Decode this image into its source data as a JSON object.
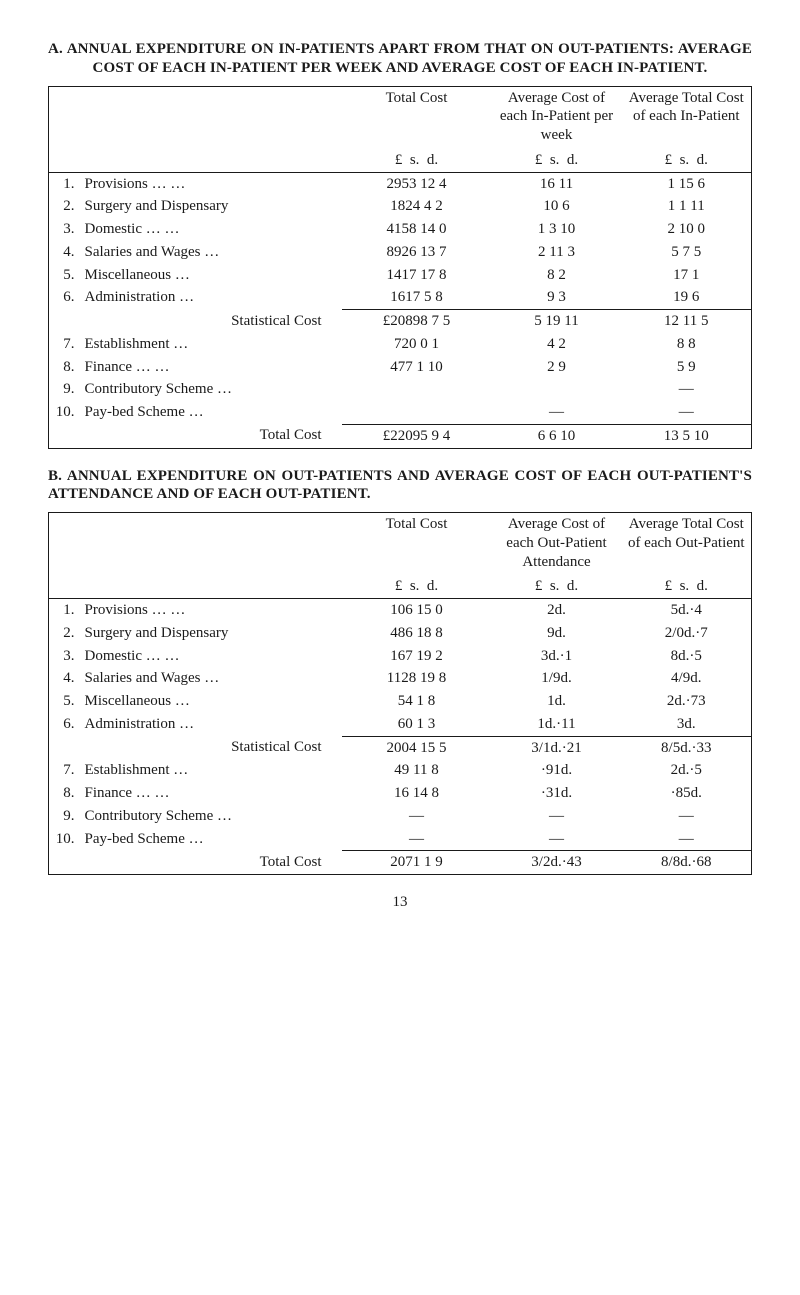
{
  "pageNumber": "13",
  "sectionA": {
    "title": "A. ANNUAL EXPENDITURE ON IN-PATIENTS APART FROM THAT ON OUT-PATIENTS: AVERAGE COST OF EACH IN-PATIENT PER WEEK AND AVERAGE COST OF EACH IN-PATIENT.",
    "headers": {
      "col1": "Total Cost",
      "col2": "Average Cost of each In-Patient per week",
      "col3": "Average Total Cost of each In-Patient"
    },
    "lsd": {
      "L": "£",
      "s": "s.",
      "d": "d."
    },
    "rows": [
      {
        "idx": "1.",
        "label": "Provisions       …       …",
        "c1": "2953 12  4",
        "c2": "16 11",
        "c3": "1 15  6"
      },
      {
        "idx": "2.",
        "label": "Surgery and Dispensary",
        "c1": "1824  4  2",
        "c2": "10  6",
        "c3": "1  1 11"
      },
      {
        "idx": "3.",
        "label": "Domestic       …       …",
        "c1": "4158 14  0",
        "c2": "1  3 10",
        "c3": "2 10  0"
      },
      {
        "idx": "4.",
        "label": "Salaries and Wages   …",
        "c1": "8926 13  7",
        "c2": "2 11  3",
        "c3": "5  7  5"
      },
      {
        "idx": "5.",
        "label": "Miscellaneous          …",
        "c1": "1417 17  8",
        "c2": "8  2",
        "c3": "17  1"
      },
      {
        "idx": "6.",
        "label": "Administration         …",
        "c1": "1617  5  8",
        "c2": "9  3",
        "c3": "19  6"
      }
    ],
    "subtotal": {
      "label": "Statistical Cost",
      "c1": "£20898  7  5",
      "c2": "5 19 11",
      "c3": "12 11  5"
    },
    "rows2": [
      {
        "idx": "7.",
        "label": "Establishment          …",
        "c1": "720  0  1",
        "c2": "4  2",
        "c3": "8  8"
      },
      {
        "idx": "8.",
        "label": "Finance        …       …",
        "c1": "477  1 10",
        "c2": "2  9",
        "c3": "5  9"
      },
      {
        "idx": "9.",
        "label": "Contributory Scheme …",
        "c1": "",
        "c2": "",
        "c3": "—"
      },
      {
        "idx": "10.",
        "label": "Pay-bed Scheme       …",
        "c1": "",
        "c2": "—",
        "c3": "—"
      }
    ],
    "total": {
      "label": "Total Cost",
      "c1": "£22095  9  4",
      "c2": "6  6 10",
      "c3": "13  5 10"
    }
  },
  "sectionB": {
    "title": "B. ANNUAL EXPENDITURE ON OUT-PATIENTS AND AVERAGE COST OF EACH OUT-PATIENT'S ATTENDANCE AND OF EACH OUT-PATIENT.",
    "headers": {
      "col1": "Total Cost",
      "col2": "Average Cost of each Out-Patient Attendance",
      "col3": "Average Total Cost of each Out-Patient"
    },
    "lsd": {
      "L": "£",
      "s": "s.",
      "d": "d."
    },
    "rows": [
      {
        "idx": "1.",
        "label": "Provisions       …       …",
        "c1": "106 15  0",
        "c2": "2d.",
        "c3": "5d.·4"
      },
      {
        "idx": "2.",
        "label": "Surgery and Dispensary",
        "c1": "486 18  8",
        "c2": "9d.",
        "c3": "2/0d.·7"
      },
      {
        "idx": "3.",
        "label": "Domestic       …       …",
        "c1": "167 19  2",
        "c2": "3d.·1",
        "c3": "8d.·5"
      },
      {
        "idx": "4.",
        "label": "Salaries and Wages   …",
        "c1": "1128 19  8",
        "c2": "1/9d.",
        "c3": "4/9d."
      },
      {
        "idx": "5.",
        "label": "Miscellaneous          …",
        "c1": "54  1  8",
        "c2": "1d.",
        "c3": "2d.·73"
      },
      {
        "idx": "6.",
        "label": "Administration         …",
        "c1": "60  1  3",
        "c2": "1d.·11",
        "c3": "3d."
      }
    ],
    "subtotal": {
      "label": "Statistical Cost",
      "c1": "2004 15  5",
      "c2": "3/1d.·21",
      "c3": "8/5d.·33"
    },
    "rows2": [
      {
        "idx": "7.",
        "label": "Establishment          …",
        "c1": "49 11  8",
        "c2": "·91d.",
        "c3": "2d.·5"
      },
      {
        "idx": "8.",
        "label": "Finance        …       …",
        "c1": "16 14  8",
        "c2": "·31d.",
        "c3": "·85d."
      },
      {
        "idx": "9.",
        "label": "Contributory Scheme …",
        "c1": "—",
        "c2": "—",
        "c3": "—"
      },
      {
        "idx": "10.",
        "label": "Pay-bed Scheme       …",
        "c1": "—",
        "c2": "—",
        "c3": "—"
      }
    ],
    "total": {
      "label": "Total Cost",
      "c1": "2071  1  9",
      "c2": "3/2d.·43",
      "c3": "8/8d.·68"
    }
  }
}
